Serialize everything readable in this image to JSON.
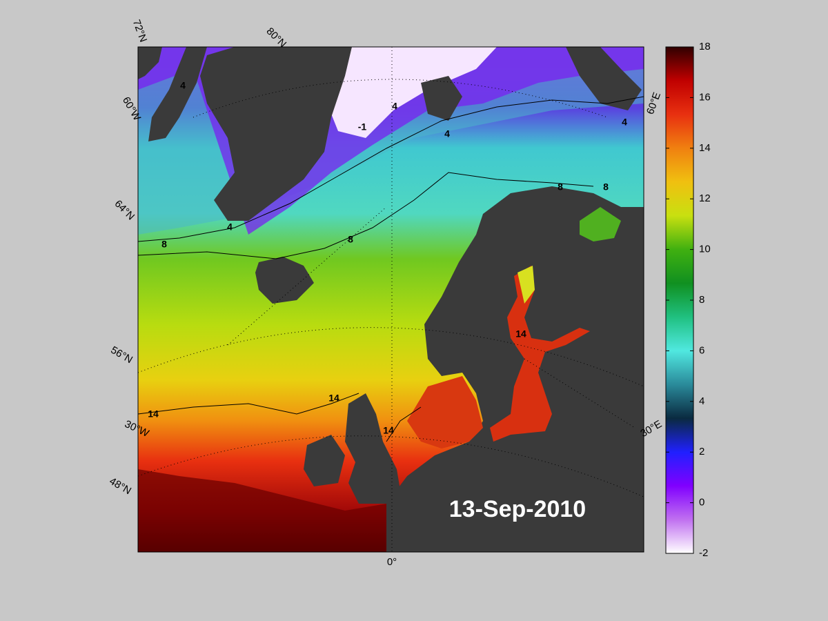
{
  "date": "13-Sep-2010",
  "graticule_labels": [
    "72°N",
    "80°N",
    "60°W",
    "64°N",
    "56°N",
    "30°W",
    "48°N",
    "0°",
    "30°E",
    "60°E"
  ],
  "contour_labels": [
    -1,
    4,
    4,
    4,
    4,
    4,
    8,
    8,
    8,
    8,
    14,
    14,
    14,
    14
  ],
  "colorbar": {
    "ylim": [
      -2,
      18
    ],
    "yticks": [
      -2,
      0,
      2,
      4,
      6,
      8,
      10,
      12,
      14,
      16,
      18
    ],
    "colors": [
      "#ffffff",
      "#c070f0",
      "#8000ff",
      "#2020ff",
      "#0a2a40",
      "#2a8a9a",
      "#50e8e0",
      "#20c080",
      "#109020",
      "#40b010",
      "#c8e010",
      "#f0c010",
      "#f08010",
      "#e83010",
      "#c00000",
      "#300000"
    ]
  }
}
